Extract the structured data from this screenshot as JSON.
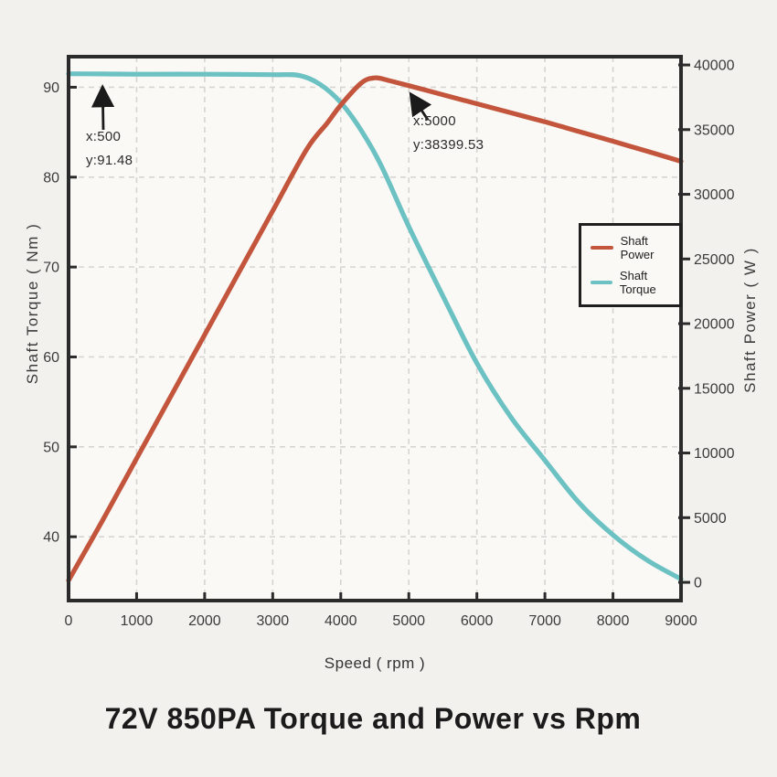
{
  "colors": {
    "power": "#c2553c",
    "torque": "#6cc1c3",
    "axis": "#2b2b2b",
    "grid": "#d7d5d2",
    "tick_text": "#3b3b3b",
    "annotation": "#1b1b1b",
    "background": "#f3f1ee",
    "plot_background": "#faf9f6"
  },
  "chart_data": {
    "type": "line",
    "title": "72V 850PA Torque and Power vs Rpm",
    "grid": "dashed",
    "x_axis": {
      "label": "Speed ( rpm )",
      "min": 0,
      "max": 9000,
      "ticks": [
        0,
        1000,
        2000,
        3000,
        4000,
        5000,
        6000,
        7000,
        8000,
        9000
      ]
    },
    "y_axis_left": {
      "label": "Shaft Torque ( Nm )",
      "min": 32.9,
      "max": 93.4,
      "ticks": [
        40,
        50,
        60,
        70,
        80,
        90
      ]
    },
    "y_axis_right": {
      "label": "Shaft Power ( W )",
      "min": -1410,
      "max": 40640,
      "ticks": [
        0,
        5000,
        10000,
        15000,
        20000,
        25000,
        30000,
        35000,
        40000
      ]
    },
    "legend": {
      "position": "right-middle",
      "items": [
        {
          "label": "Shaft Power",
          "color": "#c2553c"
        },
        {
          "label": "Shaft Torque",
          "color": "#6cc1c3"
        }
      ]
    },
    "series": [
      {
        "name": "Shaft Torque",
        "axis": "left",
        "color": "#6cc1c3",
        "points": [
          [
            0,
            91.5
          ],
          [
            500,
            91.48
          ],
          [
            1000,
            91.45
          ],
          [
            2000,
            91.45
          ],
          [
            3000,
            91.4
          ],
          [
            3400,
            91.3
          ],
          [
            3700,
            90.3
          ],
          [
            4000,
            88.3
          ],
          [
            4300,
            85.2
          ],
          [
            4600,
            81.2
          ],
          [
            5000,
            74.5
          ],
          [
            5500,
            66.8
          ],
          [
            6000,
            59.3
          ],
          [
            6500,
            53.3
          ],
          [
            7000,
            48.5
          ],
          [
            7500,
            43.8
          ],
          [
            8000,
            40.2
          ],
          [
            8500,
            37.4
          ],
          [
            9000,
            35.3
          ]
        ]
      },
      {
        "name": "Shaft Power",
        "axis": "right",
        "color": "#c2553c",
        "points": [
          [
            0,
            150
          ],
          [
            500,
            4790
          ],
          [
            1000,
            9570
          ],
          [
            1500,
            14360
          ],
          [
            2000,
            19140
          ],
          [
            2500,
            23930
          ],
          [
            3000,
            28710
          ],
          [
            3500,
            33480
          ],
          [
            3800,
            35500
          ],
          [
            4000,
            36900
          ],
          [
            4300,
            38600
          ],
          [
            4500,
            39000
          ],
          [
            4700,
            38800
          ],
          [
            5000,
            38399.53
          ],
          [
            5500,
            37700
          ],
          [
            6000,
            37000
          ],
          [
            6500,
            36300
          ],
          [
            7000,
            35600
          ],
          [
            7500,
            34850
          ],
          [
            8000,
            34100
          ],
          [
            8500,
            33330
          ],
          [
            9000,
            32550
          ]
        ]
      }
    ],
    "annotations": [
      {
        "line1": "x:500",
        "line2": "y:91.48",
        "x": 500,
        "y": 91.48,
        "axis": "left"
      },
      {
        "line1": "x:5000",
        "line2": "y:38399.53",
        "x": 5000,
        "y": 38399.53,
        "axis": "right"
      }
    ]
  }
}
